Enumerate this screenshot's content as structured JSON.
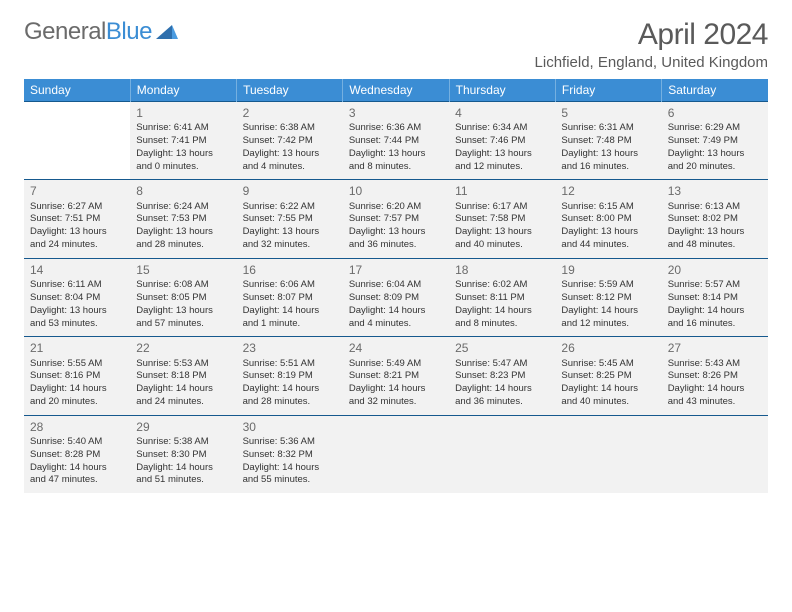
{
  "logo": {
    "word1": "General",
    "word2": "Blue"
  },
  "title": "April 2024",
  "location": "Lichfield, England, United Kingdom",
  "colors": {
    "header_bg": "#3b8dd4",
    "header_border": "#75b0e0",
    "row_border": "#16598e",
    "cell_bg": "#f2f2f2",
    "text": "#333333",
    "title_text": "#5a5a5a",
    "logo_gray": "#6b6b6b",
    "logo_blue": "#3b8dd4"
  },
  "typography": {
    "title_fontsize": 30,
    "location_fontsize": 15,
    "dayheader_fontsize": 12,
    "daynum_fontsize": 12,
    "cell_fontsize": 9.5
  },
  "dayHeaders": [
    "Sunday",
    "Monday",
    "Tuesday",
    "Wednesday",
    "Thursday",
    "Friday",
    "Saturday"
  ],
  "weeks": [
    [
      null,
      {
        "n": "1",
        "sr": "Sunrise: 6:41 AM",
        "ss": "Sunset: 7:41 PM",
        "d1": "Daylight: 13 hours",
        "d2": "and 0 minutes."
      },
      {
        "n": "2",
        "sr": "Sunrise: 6:38 AM",
        "ss": "Sunset: 7:42 PM",
        "d1": "Daylight: 13 hours",
        "d2": "and 4 minutes."
      },
      {
        "n": "3",
        "sr": "Sunrise: 6:36 AM",
        "ss": "Sunset: 7:44 PM",
        "d1": "Daylight: 13 hours",
        "d2": "and 8 minutes."
      },
      {
        "n": "4",
        "sr": "Sunrise: 6:34 AM",
        "ss": "Sunset: 7:46 PM",
        "d1": "Daylight: 13 hours",
        "d2": "and 12 minutes."
      },
      {
        "n": "5",
        "sr": "Sunrise: 6:31 AM",
        "ss": "Sunset: 7:48 PM",
        "d1": "Daylight: 13 hours",
        "d2": "and 16 minutes."
      },
      {
        "n": "6",
        "sr": "Sunrise: 6:29 AM",
        "ss": "Sunset: 7:49 PM",
        "d1": "Daylight: 13 hours",
        "d2": "and 20 minutes."
      }
    ],
    [
      {
        "n": "7",
        "sr": "Sunrise: 6:27 AM",
        "ss": "Sunset: 7:51 PM",
        "d1": "Daylight: 13 hours",
        "d2": "and 24 minutes."
      },
      {
        "n": "8",
        "sr": "Sunrise: 6:24 AM",
        "ss": "Sunset: 7:53 PM",
        "d1": "Daylight: 13 hours",
        "d2": "and 28 minutes."
      },
      {
        "n": "9",
        "sr": "Sunrise: 6:22 AM",
        "ss": "Sunset: 7:55 PM",
        "d1": "Daylight: 13 hours",
        "d2": "and 32 minutes."
      },
      {
        "n": "10",
        "sr": "Sunrise: 6:20 AM",
        "ss": "Sunset: 7:57 PM",
        "d1": "Daylight: 13 hours",
        "d2": "and 36 minutes."
      },
      {
        "n": "11",
        "sr": "Sunrise: 6:17 AM",
        "ss": "Sunset: 7:58 PM",
        "d1": "Daylight: 13 hours",
        "d2": "and 40 minutes."
      },
      {
        "n": "12",
        "sr": "Sunrise: 6:15 AM",
        "ss": "Sunset: 8:00 PM",
        "d1": "Daylight: 13 hours",
        "d2": "and 44 minutes."
      },
      {
        "n": "13",
        "sr": "Sunrise: 6:13 AM",
        "ss": "Sunset: 8:02 PM",
        "d1": "Daylight: 13 hours",
        "d2": "and 48 minutes."
      }
    ],
    [
      {
        "n": "14",
        "sr": "Sunrise: 6:11 AM",
        "ss": "Sunset: 8:04 PM",
        "d1": "Daylight: 13 hours",
        "d2": "and 53 minutes."
      },
      {
        "n": "15",
        "sr": "Sunrise: 6:08 AM",
        "ss": "Sunset: 8:05 PM",
        "d1": "Daylight: 13 hours",
        "d2": "and 57 minutes."
      },
      {
        "n": "16",
        "sr": "Sunrise: 6:06 AM",
        "ss": "Sunset: 8:07 PM",
        "d1": "Daylight: 14 hours",
        "d2": "and 1 minute."
      },
      {
        "n": "17",
        "sr": "Sunrise: 6:04 AM",
        "ss": "Sunset: 8:09 PM",
        "d1": "Daylight: 14 hours",
        "d2": "and 4 minutes."
      },
      {
        "n": "18",
        "sr": "Sunrise: 6:02 AM",
        "ss": "Sunset: 8:11 PM",
        "d1": "Daylight: 14 hours",
        "d2": "and 8 minutes."
      },
      {
        "n": "19",
        "sr": "Sunrise: 5:59 AM",
        "ss": "Sunset: 8:12 PM",
        "d1": "Daylight: 14 hours",
        "d2": "and 12 minutes."
      },
      {
        "n": "20",
        "sr": "Sunrise: 5:57 AM",
        "ss": "Sunset: 8:14 PM",
        "d1": "Daylight: 14 hours",
        "d2": "and 16 minutes."
      }
    ],
    [
      {
        "n": "21",
        "sr": "Sunrise: 5:55 AM",
        "ss": "Sunset: 8:16 PM",
        "d1": "Daylight: 14 hours",
        "d2": "and 20 minutes."
      },
      {
        "n": "22",
        "sr": "Sunrise: 5:53 AM",
        "ss": "Sunset: 8:18 PM",
        "d1": "Daylight: 14 hours",
        "d2": "and 24 minutes."
      },
      {
        "n": "23",
        "sr": "Sunrise: 5:51 AM",
        "ss": "Sunset: 8:19 PM",
        "d1": "Daylight: 14 hours",
        "d2": "and 28 minutes."
      },
      {
        "n": "24",
        "sr": "Sunrise: 5:49 AM",
        "ss": "Sunset: 8:21 PM",
        "d1": "Daylight: 14 hours",
        "d2": "and 32 minutes."
      },
      {
        "n": "25",
        "sr": "Sunrise: 5:47 AM",
        "ss": "Sunset: 8:23 PM",
        "d1": "Daylight: 14 hours",
        "d2": "and 36 minutes."
      },
      {
        "n": "26",
        "sr": "Sunrise: 5:45 AM",
        "ss": "Sunset: 8:25 PM",
        "d1": "Daylight: 14 hours",
        "d2": "and 40 minutes."
      },
      {
        "n": "27",
        "sr": "Sunrise: 5:43 AM",
        "ss": "Sunset: 8:26 PM",
        "d1": "Daylight: 14 hours",
        "d2": "and 43 minutes."
      }
    ],
    [
      {
        "n": "28",
        "sr": "Sunrise: 5:40 AM",
        "ss": "Sunset: 8:28 PM",
        "d1": "Daylight: 14 hours",
        "d2": "and 47 minutes."
      },
      {
        "n": "29",
        "sr": "Sunrise: 5:38 AM",
        "ss": "Sunset: 8:30 PM",
        "d1": "Daylight: 14 hours",
        "d2": "and 51 minutes."
      },
      {
        "n": "30",
        "sr": "Sunrise: 5:36 AM",
        "ss": "Sunset: 8:32 PM",
        "d1": "Daylight: 14 hours",
        "d2": "and 55 minutes."
      },
      "blank",
      "blank",
      "blank",
      "blank"
    ]
  ]
}
